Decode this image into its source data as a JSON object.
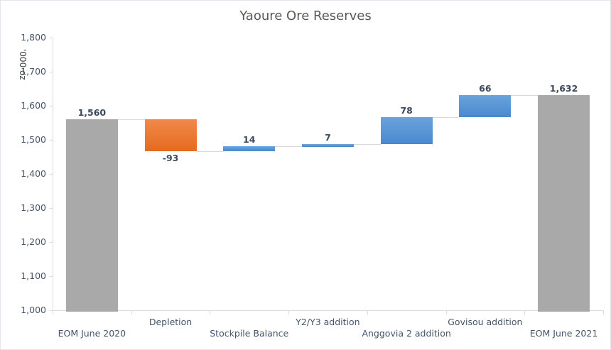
{
  "chart_data": {
    "type": "waterfall",
    "title": "Yaoure Ore Reserves",
    "xlabel": "",
    "ylabel": "'000 oz",
    "ylim": [
      1000,
      1800
    ],
    "yticks": [
      "1,000",
      "1,100",
      "1,200",
      "1,300",
      "1,400",
      "1,500",
      "1,600",
      "1,700",
      "1,800"
    ],
    "grid": false,
    "legend": null,
    "categories": [
      "EOM June 2020",
      "Depletion",
      "Stockpile Balance",
      "Y2/Y3 addition",
      "Anggovia 2 addition",
      "Govisou addition",
      "EOM June 2021"
    ],
    "values": [
      1560,
      -93,
      14,
      7,
      78,
      66,
      1632
    ],
    "value_labels": [
      "1,560",
      "-93",
      "14",
      "7",
      "78",
      "66",
      "1,632"
    ],
    "bar_kinds": [
      "total",
      "decrease",
      "increase",
      "increase",
      "increase",
      "increase",
      "total"
    ],
    "colors": {
      "total": "#a9a9a9",
      "decrease": "#ed7d31",
      "increase": "#5b9bd5"
    }
  }
}
